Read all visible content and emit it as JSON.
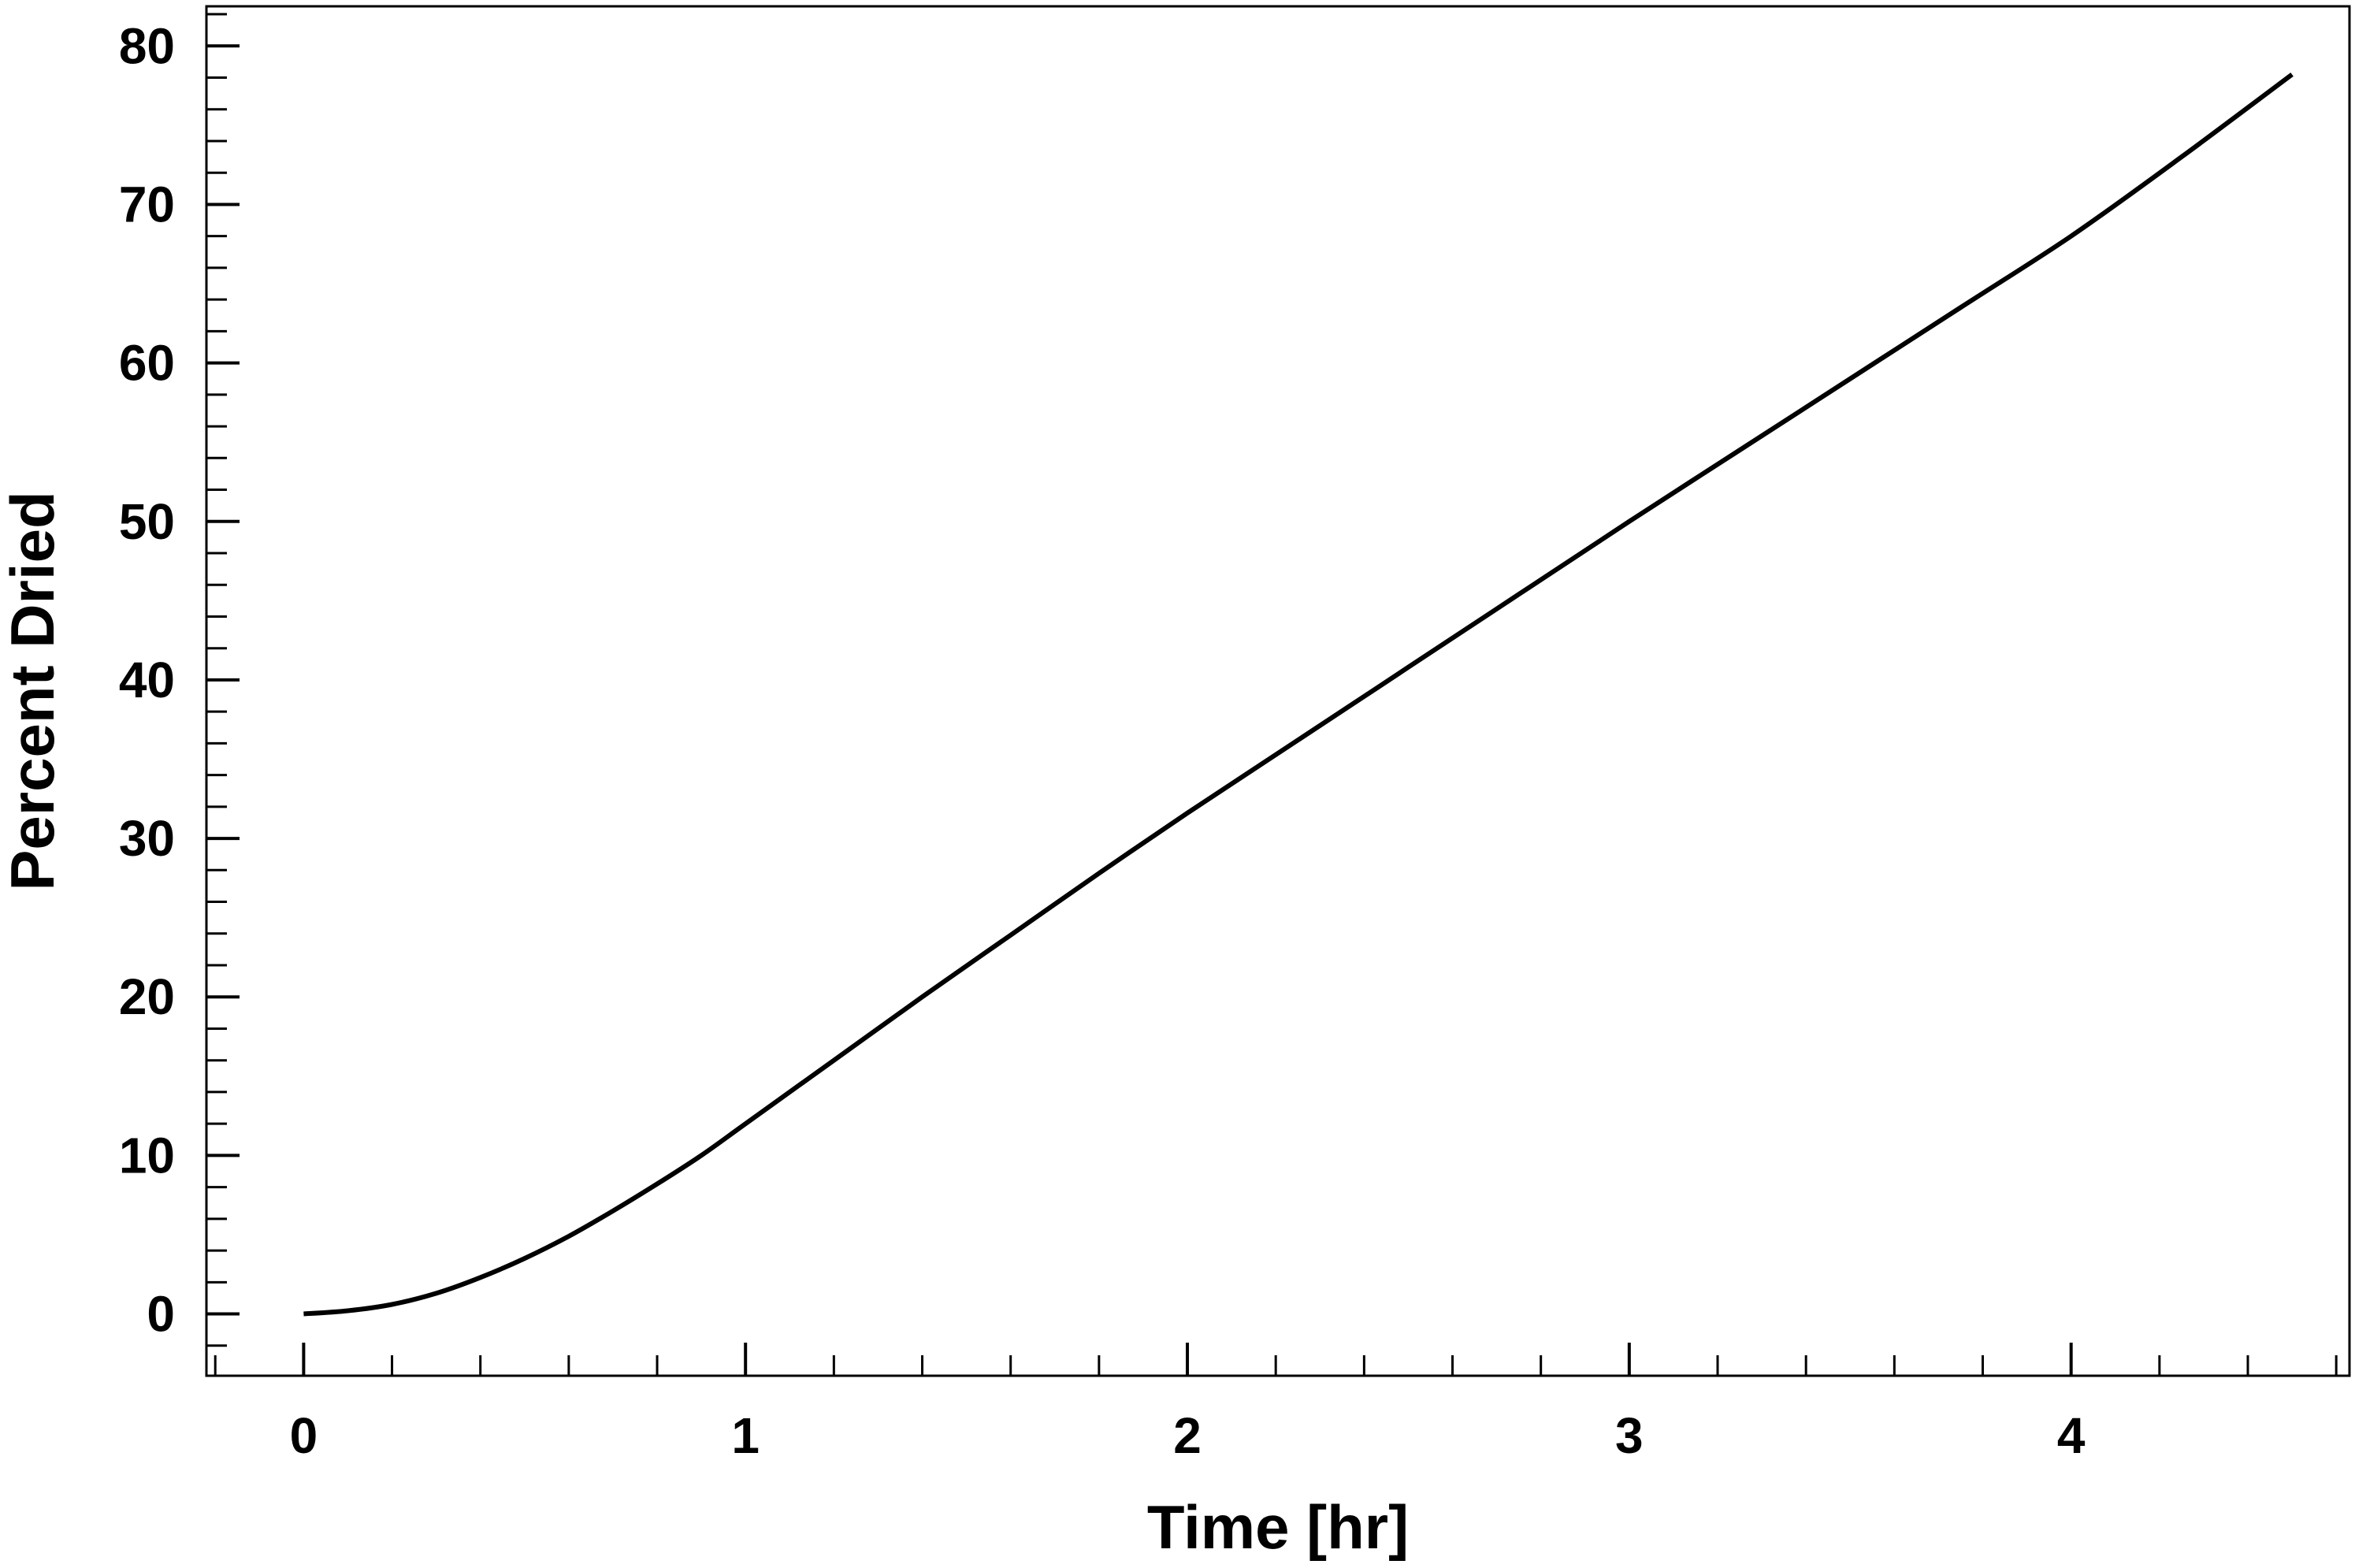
{
  "chart_data": {
    "type": "line",
    "title": "",
    "xlabel": "Time [hr]",
    "ylabel": "Percent Dried",
    "xlim": [
      -0.22,
      4.63
    ],
    "ylim": [
      -3.9,
      82.5
    ],
    "x_ticks": [
      0,
      1,
      2,
      3,
      4
    ],
    "x_tick_labels": [
      "0",
      "1",
      "2",
      "3",
      "4"
    ],
    "x_minor_step": 0.2,
    "y_ticks": [
      0,
      10,
      20,
      30,
      40,
      50,
      60,
      70,
      80
    ],
    "y_tick_labels": [
      "0",
      "10",
      "20",
      "30",
      "40",
      "50",
      "60",
      "70",
      "80"
    ],
    "y_minor_step": 2,
    "grid": false,
    "legend": "none",
    "line_color": "#000000",
    "series": [
      {
        "x": [
          0,
          0.1,
          0.2,
          0.3,
          0.4,
          0.5,
          0.6,
          0.7,
          0.8,
          0.9,
          1.0,
          1.2,
          1.4,
          1.6,
          1.8,
          2.0,
          2.25,
          2.5,
          2.75,
          3.0,
          3.25,
          3.5,
          3.75,
          4.0,
          4.25,
          4.5
        ],
        "y": [
          0.0,
          0.2,
          0.6,
          1.3,
          2.3,
          3.5,
          4.9,
          6.5,
          8.2,
          10.0,
          12.0,
          16.0,
          20.0,
          23.9,
          27.8,
          31.6,
          36.2,
          40.8,
          45.4,
          50.0,
          54.5,
          59.0,
          63.5,
          68.0,
          73.0,
          78.2
        ]
      }
    ]
  }
}
